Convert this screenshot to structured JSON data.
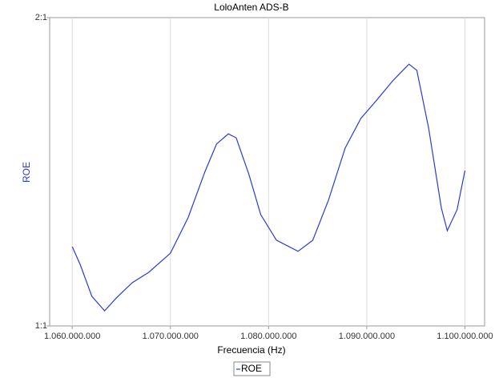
{
  "chart_data": {
    "type": "line",
    "title": "LoloAnten ADS-B",
    "x_label": "Frecuencia (Hz)",
    "y_label": "ROE",
    "x": [
      1060000000,
      1060800000,
      1062000000,
      1063300000,
      1064500000,
      1066100000,
      1067800000,
      1070000000,
      1071800000,
      1073500000,
      1074700000,
      1075900000,
      1076700000,
      1078000000,
      1079200000,
      1080800000,
      1083000000,
      1084500000,
      1086100000,
      1087800000,
      1089400000,
      1091000000,
      1092700000,
      1094300000,
      1095100000,
      1096300000,
      1097600000,
      1098200000,
      1099200000,
      1100000000
    ],
    "series": [
      {
        "name": "ROE",
        "color": "#2b3bd1",
        "values": [
          1.257,
          1.2,
          1.096,
          1.049,
          1.091,
          1.14,
          1.174,
          1.236,
          1.351,
          1.499,
          1.59,
          1.623,
          1.61,
          1.491,
          1.361,
          1.278,
          1.242,
          1.278,
          1.408,
          1.577,
          1.673,
          1.732,
          1.797,
          1.849,
          1.829,
          1.642,
          1.382,
          1.309,
          1.377,
          1.504
        ]
      }
    ],
    "xlim": [
      1057700000,
      1102000000
    ],
    "xticks": [
      {
        "value": 1060000000,
        "label": "1.060.000.000"
      },
      {
        "value": 1070000000,
        "label": "1.070.000.000"
      },
      {
        "value": 1080000000,
        "label": "1.080.000.000"
      },
      {
        "value": 1090000000,
        "label": "1.090.000.000"
      },
      {
        "value": 1100000000,
        "label": "1.100.000.000"
      }
    ],
    "ylim": [
      1,
      2
    ],
    "yticks": [
      {
        "value": 1,
        "label": "1:1"
      },
      {
        "value": 2,
        "label": "2:1"
      }
    ],
    "grid": true,
    "legend": "bottom"
  }
}
